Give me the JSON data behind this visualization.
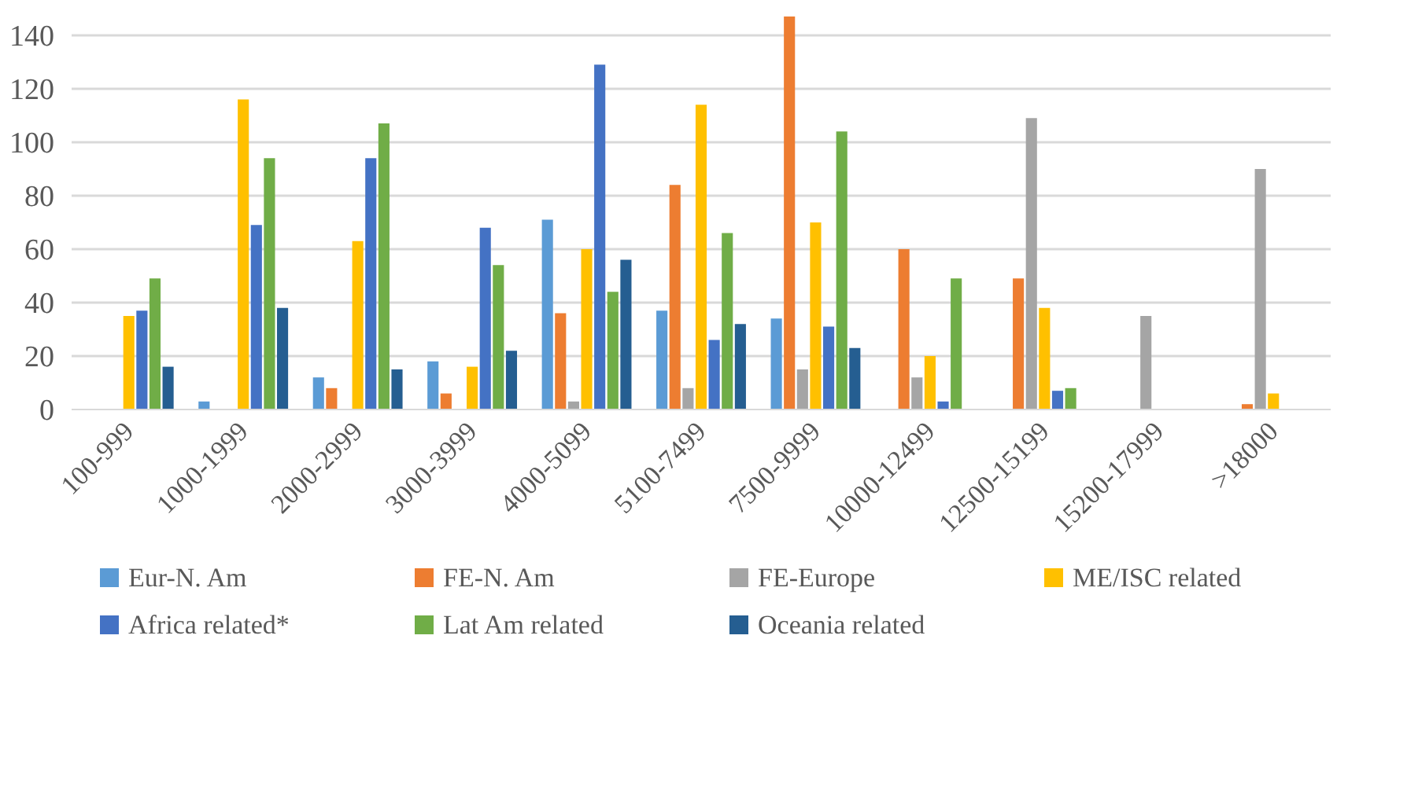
{
  "chart_data": {
    "type": "bar",
    "categories": [
      "100-999",
      "1000-1999",
      "2000-2999",
      "3000-3999",
      "4000-5099",
      "5100-7499",
      "7500-9999",
      "10000-12499",
      "12500-15199",
      "15200-17999",
      ">18000"
    ],
    "series": [
      {
        "name": "Eur-N. Am",
        "color": "#5b9bd5",
        "values": [
          0,
          3,
          12,
          18,
          71,
          37,
          34,
          0,
          0,
          0,
          0
        ]
      },
      {
        "name": "FE-N. Am",
        "color": "#ed7d31",
        "values": [
          0,
          0,
          8,
          6,
          36,
          84,
          147,
          60,
          49,
          0,
          2
        ]
      },
      {
        "name": "FE-Europe",
        "color": "#a5a5a5",
        "values": [
          0,
          0,
          0,
          0,
          3,
          8,
          15,
          12,
          109,
          35,
          90
        ]
      },
      {
        "name": "ME/ISC related",
        "color": "#ffc000",
        "values": [
          35,
          116,
          63,
          16,
          60,
          114,
          70,
          20,
          38,
          0,
          6
        ]
      },
      {
        "name": "Africa related*",
        "color": "#4472c4",
        "values": [
          37,
          69,
          94,
          68,
          129,
          26,
          31,
          3,
          7,
          0,
          0
        ]
      },
      {
        "name": "Lat Am related",
        "color": "#70ad47",
        "values": [
          49,
          94,
          107,
          54,
          44,
          66,
          104,
          49,
          8,
          0,
          0
        ]
      },
      {
        "name": "Oceania related",
        "color": "#255e91",
        "values": [
          16,
          38,
          15,
          22,
          56,
          32,
          23,
          0,
          0,
          0,
          0
        ]
      }
    ],
    "ylim": [
      0,
      147
    ],
    "yticks": [
      0,
      20,
      40,
      60,
      80,
      100,
      120,
      140
    ],
    "grid": "y",
    "legend": "bottom"
  }
}
